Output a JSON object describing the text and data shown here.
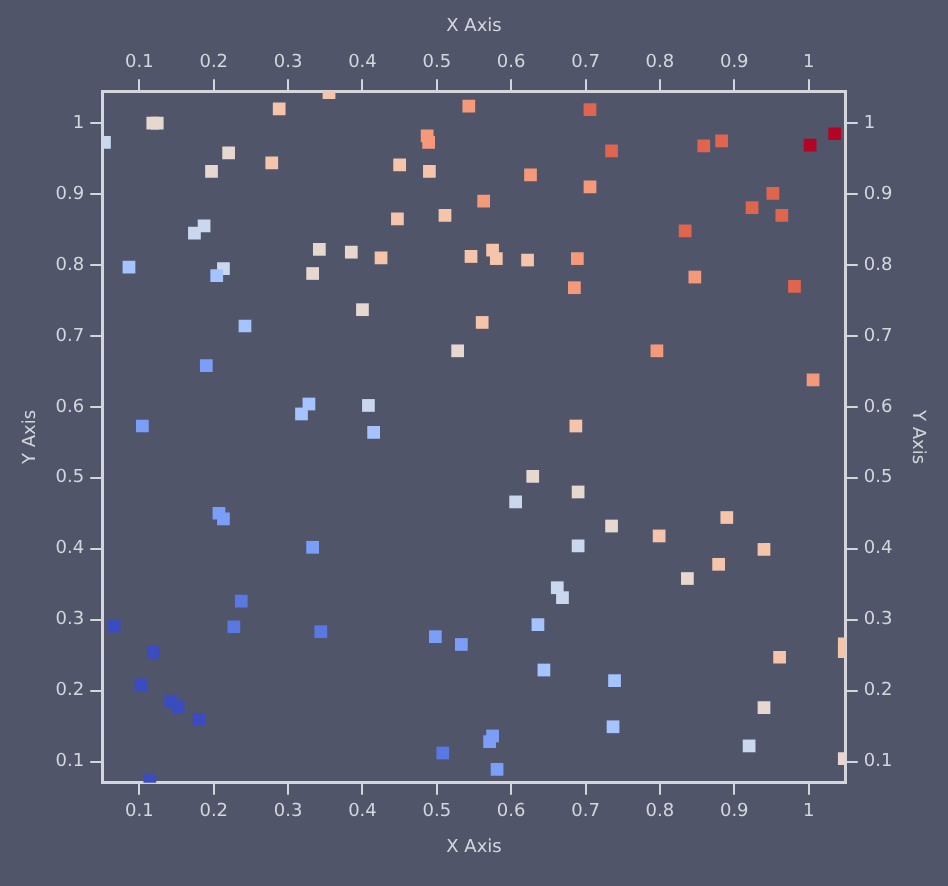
{
  "chart_data": {
    "type": "scatter",
    "xlabel": "X Axis",
    "x2label": "X Axis",
    "ylabel": "Y Axis",
    "y2label": "Y Axis",
    "xlim": [
      0.05,
      1.05
    ],
    "ylim": [
      0.07,
      1.045
    ],
    "x2lim": [
      0.05,
      1.05
    ],
    "y2lim": [
      0.07,
      1.045
    ],
    "xticks": [
      0.1,
      0.2,
      0.3,
      0.4,
      0.5,
      0.6,
      0.7,
      0.8,
      0.9,
      1
    ],
    "x2ticks": [
      0.1,
      0.2,
      0.3,
      0.4,
      0.5,
      0.6,
      0.7,
      0.8,
      0.9,
      1
    ],
    "yticks": [
      0.1,
      0.2,
      0.3,
      0.4,
      0.5,
      0.6,
      0.7,
      0.8,
      0.9,
      1
    ],
    "y2ticks": [
      0.1,
      0.2,
      0.3,
      0.4,
      0.5,
      0.6,
      0.7,
      0.8,
      0.9,
      1
    ],
    "marker": "square",
    "grid": false,
    "legend": false,
    "x": [
      0.118,
      0.124,
      0.053,
      0.288,
      0.355,
      0.22,
      0.197,
      0.278,
      0.487,
      0.489,
      0.543,
      0.45,
      0.49,
      0.563,
      0.511,
      0.447,
      0.187,
      0.174,
      0.086,
      0.213,
      0.204,
      0.342,
      0.385,
      0.425,
      0.333,
      0.546,
      0.575,
      0.58,
      0.4,
      0.242,
      0.561,
      0.528,
      0.19,
      0.328,
      0.318,
      0.408,
      0.415,
      0.104,
      0.706,
      0.735,
      0.626,
      0.706,
      0.859,
      0.883,
      1.002,
      1.035,
      0.952,
      0.924,
      0.964,
      0.834,
      0.847,
      0.981,
      0.622,
      0.689,
      0.685,
      0.796,
      1.006,
      0.687,
      0.207,
      0.213,
      0.333,
      0.237,
      0.227,
      0.344,
      0.066,
      0.119,
      0.102,
      0.142,
      0.152,
      0.18,
      0.114,
      0.498,
      0.533,
      0.508,
      0.575,
      0.571,
      0.581,
      0.629,
      0.606,
      0.69,
      0.735,
      0.69,
      0.799,
      0.89,
      0.94,
      0.879,
      0.837,
      0.662,
      0.669,
      0.636,
      0.644,
      0.739,
      0.737,
      0.961,
      0.94,
      0.92,
      1.048,
      1.048,
      1.048
    ],
    "values": [
      1.0,
      1.0,
      0.973,
      1.02,
      1.043,
      0.958,
      0.932,
      0.944,
      0.982,
      0.973,
      1.024,
      0.941,
      0.932,
      0.89,
      0.87,
      0.865,
      0.855,
      0.845,
      0.797,
      0.795,
      0.785,
      0.822,
      0.818,
      0.81,
      0.788,
      0.812,
      0.821,
      0.809,
      0.737,
      0.714,
      0.719,
      0.679,
      0.658,
      0.604,
      0.59,
      0.602,
      0.564,
      0.573,
      1.019,
      0.961,
      0.927,
      0.91,
      0.968,
      0.975,
      0.969,
      0.985,
      0.901,
      0.881,
      0.87,
      0.848,
      0.783,
      0.77,
      0.807,
      0.809,
      0.768,
      0.679,
      0.638,
      0.573,
      0.45,
      0.442,
      0.402,
      0.326,
      0.29,
      0.283,
      0.291,
      0.254,
      0.208,
      0.185,
      0.177,
      0.159,
      0.073,
      0.276,
      0.265,
      0.112,
      0.136,
      0.128,
      0.089,
      0.502,
      0.466,
      0.48,
      0.432,
      0.404,
      0.418,
      0.444,
      0.399,
      0.378,
      0.358,
      0.345,
      0.331,
      0.293,
      0.229,
      0.214,
      0.149,
      0.247,
      0.176,
      0.122,
      0.266,
      0.255,
      0.104
    ],
    "colors": [
      "#e6d7cf",
      "#e6d7cf",
      "#cad8ef",
      "#f4c4ab",
      "#f4c4ab",
      "#e6d7cf",
      "#e6d7cf",
      "#f4c4ab",
      "#f49a7b",
      "#f49a7b",
      "#f49a7b",
      "#f4c4ab",
      "#f4c4ab",
      "#f49a7b",
      "#f4c4ab",
      "#f4c4ab",
      "#cad8ef",
      "#cad8ef",
      "#a5c3fe",
      "#cad8ef",
      "#a5c3fe",
      "#e6d7cf",
      "#e6d7cf",
      "#f4c4ab",
      "#e6d7cf",
      "#f4c4ab",
      "#f4c4ab",
      "#f4c4ab",
      "#e6d7cf",
      "#a5c3fe",
      "#f4c4ab",
      "#e6d7cf",
      "#7b9ff9",
      "#a5c3fe",
      "#a5c3fe",
      "#cad8ef",
      "#a5c3fe",
      "#7b9ff9",
      "#e0654f",
      "#e0654f",
      "#f49a7b",
      "#f49a7b",
      "#e0654f",
      "#e0654f",
      "#b40426",
      "#b40426",
      "#e0654f",
      "#e0654f",
      "#e0654f",
      "#e0654f",
      "#f49a7b",
      "#e0654f",
      "#f4c4ab",
      "#f49a7b",
      "#f49a7b",
      "#f49a7b",
      "#f49a7b",
      "#f4c4ab",
      "#7b9ff9",
      "#7b9ff9",
      "#7b9ff9",
      "#5a78e4",
      "#5a78e4",
      "#5a78e4",
      "#3b4cc0",
      "#3b4cc0",
      "#3b4cc0",
      "#3b4cc0",
      "#3b4cc0",
      "#3b4cc0",
      "#3b4cc0",
      "#7b9ff9",
      "#7b9ff9",
      "#5a78e4",
      "#7b9ff9",
      "#7b9ff9",
      "#7b9ff9",
      "#e6d7cf",
      "#cad8ef",
      "#e6d7cf",
      "#e6d7cf",
      "#cad8ef",
      "#f4c4ab",
      "#f4c4ab",
      "#f4c4ab",
      "#f4c4ab",
      "#e6d7cf",
      "#cad8ef",
      "#cad8ef",
      "#a5c3fe",
      "#a5c3fe",
      "#a5c3fe",
      "#a5c3fe",
      "#f4c4ab",
      "#e6d7cf",
      "#cad8ef",
      "#f4c4ab",
      "#f4c4ab",
      "#e6d7cf"
    ]
  }
}
